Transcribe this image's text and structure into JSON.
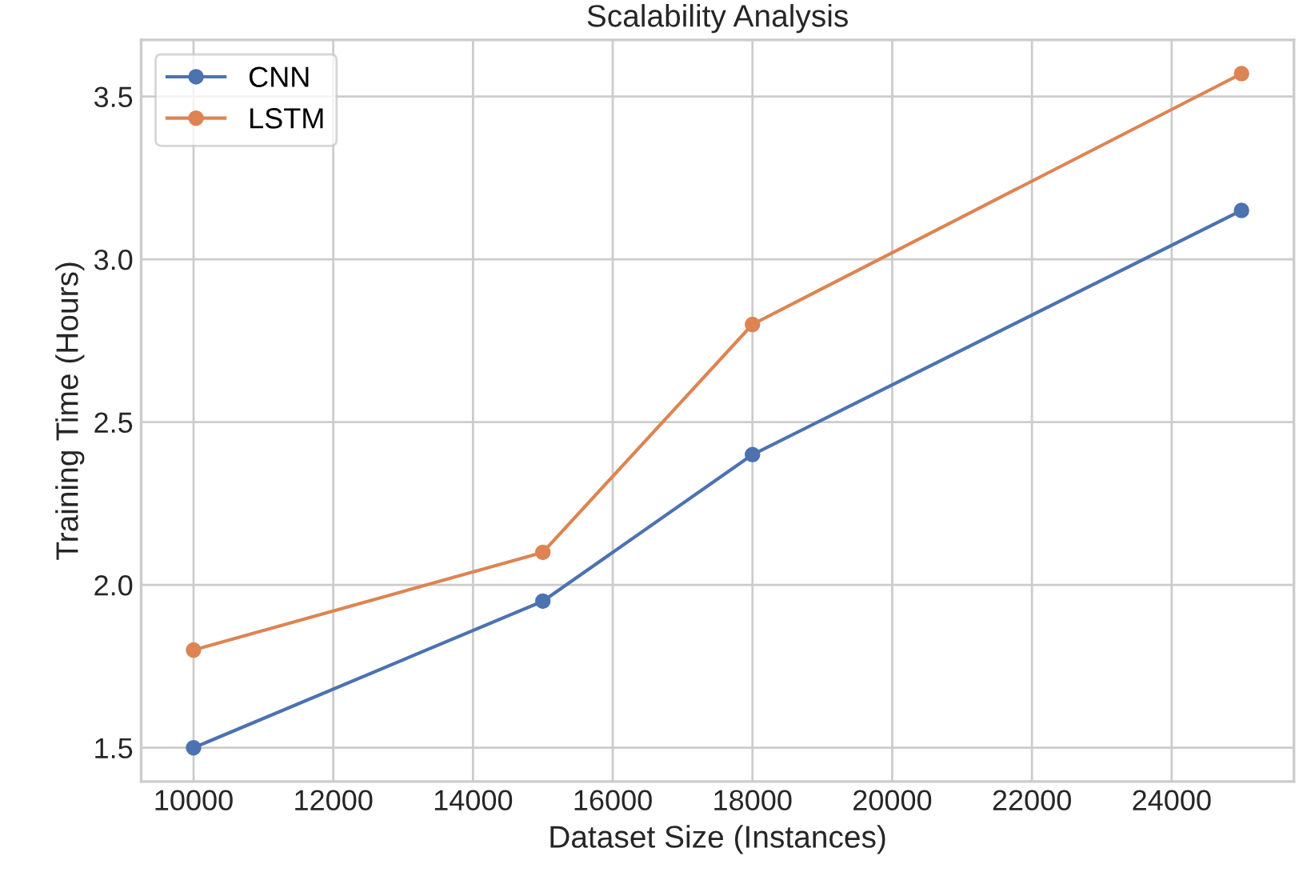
{
  "chart_data": {
    "type": "line",
    "title": "Scalability Analysis",
    "xlabel": "Dataset Size (Instances)",
    "ylabel": "Training Time (Hours)",
    "x": [
      10000,
      15000,
      18000,
      25000
    ],
    "series": [
      {
        "name": "CNN",
        "color": "#4c72b0",
        "values": [
          1.5,
          1.95,
          2.4,
          3.15
        ]
      },
      {
        "name": "LSTM",
        "color": "#dd8452",
        "values": [
          1.8,
          2.1,
          2.8,
          3.57
        ]
      }
    ],
    "xlim": [
      9250,
      25750
    ],
    "xticks": [
      10000,
      12000,
      14000,
      16000,
      18000,
      20000,
      22000,
      24000
    ],
    "ylim": [
      1.3965,
      3.6735
    ],
    "yticks": [
      1.5,
      {
        "value": 2,
        "label": "2.0"
      },
      2.5,
      {
        "value": 3,
        "label": "3.0"
      },
      3.5
    ],
    "grid": true,
    "legend": "top left",
    "marker": "circle",
    "line_style": "solid"
  }
}
